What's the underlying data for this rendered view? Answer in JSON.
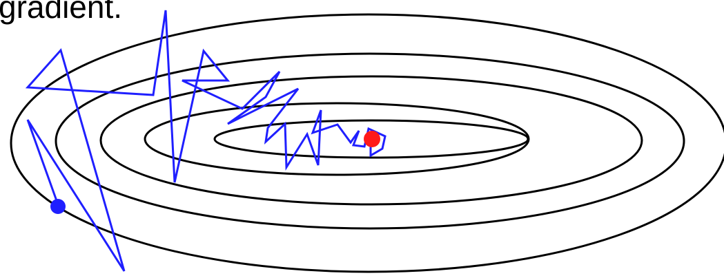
{
  "slide": {
    "title_fragment": "gradient."
  },
  "diagram": {
    "contour_color": "#000000",
    "path_color": "#1f1fff",
    "start_point_color": "#1f1fff",
    "optimum_point_color": "#ff1a1a",
    "contour_levels": 5
  }
}
